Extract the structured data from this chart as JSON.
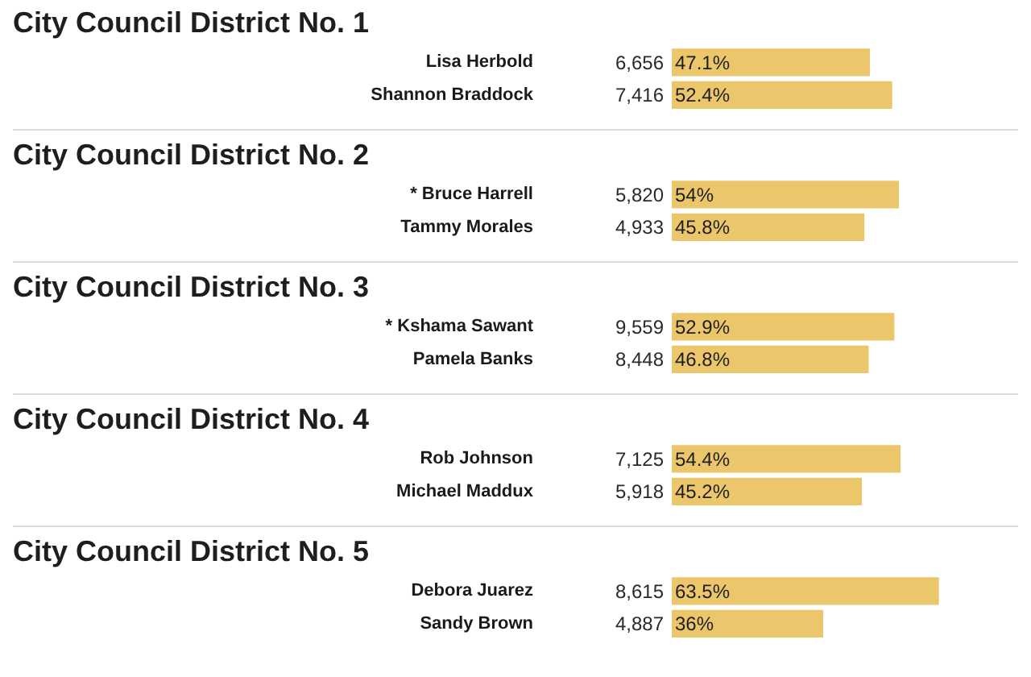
{
  "chart_data": [
    {
      "type": "bar",
      "orientation": "horizontal",
      "title": "City Council District No. 1",
      "categories": [
        "Lisa Herbold",
        "Shannon Braddock"
      ],
      "values": [
        47.1,
        52.4
      ],
      "value_labels": [
        "47.1%",
        "52.4%"
      ],
      "color": "#ebc66b",
      "xlim": [
        0,
        85
      ],
      "tick_labels": "y",
      "annotations": [
        "6,656",
        "7,416"
      ]
    },
    {
      "type": "bar",
      "orientation": "horizontal",
      "title": "City Council District No. 2",
      "categories": [
        "* Bruce Harrell",
        "Tammy Morales"
      ],
      "values": [
        54,
        45.8
      ],
      "value_labels": [
        "54%",
        "45.8%"
      ],
      "color": "#ebc66b",
      "xlim": [
        0,
        85
      ],
      "tick_labels": "y",
      "annotations": [
        "5,820",
        "4,933"
      ]
    },
    {
      "type": "bar",
      "orientation": "horizontal",
      "title": "City Council District No. 3",
      "categories": [
        "* Kshama Sawant",
        "Pamela Banks"
      ],
      "values": [
        52.9,
        46.8
      ],
      "value_labels": [
        "52.9%",
        "46.8%"
      ],
      "color": "#ebc66b",
      "xlim": [
        0,
        85
      ],
      "tick_labels": "y",
      "annotations": [
        "9,559",
        "8,448"
      ]
    },
    {
      "type": "bar",
      "orientation": "horizontal",
      "title": "City Council District No. 4",
      "categories": [
        "Rob Johnson",
        "Michael Maddux"
      ],
      "values": [
        54.4,
        45.2
      ],
      "value_labels": [
        "54.4%",
        "45.2%"
      ],
      "color": "#ebc66b",
      "xlim": [
        0,
        85
      ],
      "tick_labels": "y",
      "annotations": [
        "7,125",
        "5,918"
      ]
    },
    {
      "type": "bar",
      "orientation": "horizontal",
      "title": "City Council District No. 5",
      "categories": [
        "Debora Juarez",
        "Sandy Brown"
      ],
      "values": [
        63.5,
        36
      ],
      "value_labels": [
        "63.5%",
        "36%"
      ],
      "color": "#ebc66b",
      "xlim": [
        0,
        85
      ],
      "tick_labels": "y",
      "annotations": [
        "8,615",
        "4,887"
      ]
    }
  ]
}
